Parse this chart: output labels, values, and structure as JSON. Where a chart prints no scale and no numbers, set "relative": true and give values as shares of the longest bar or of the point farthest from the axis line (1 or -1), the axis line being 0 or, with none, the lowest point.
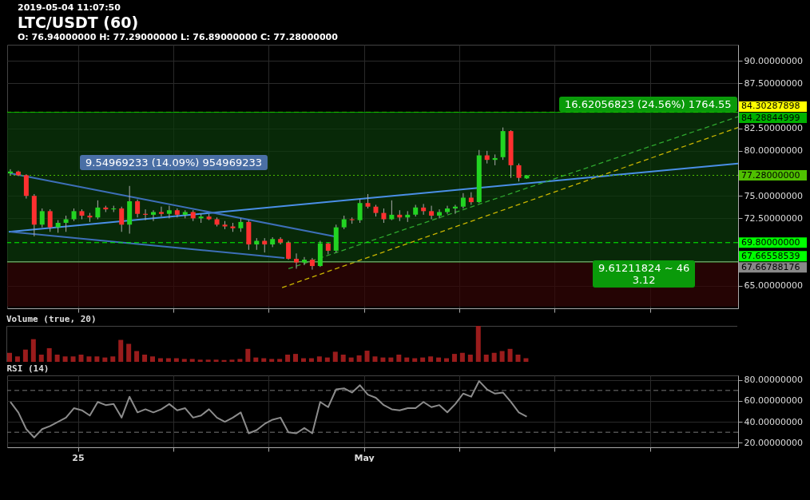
{
  "chart_data": [
    {
      "type": "candlestick",
      "title": "LTC/USDT (60)",
      "subtitle": "O: 76.94000000 H: 77.29000000 L: 76.89000000 C: 77.28000000",
      "annotations": [
        "2019-05-04 11:07:50",
        "9.54969233 (14.09%) 954969233",
        "16.62056823 (24.56%) 1764.55",
        "9.61211824 ~ 46\n3.12"
      ],
      "x": [
        "2019-04-23T14:00",
        "2019-04-23T18:00",
        "2019-04-23T22:00",
        "2019-04-24T02:00",
        "2019-04-24T06:00",
        "2019-04-24T10:00",
        "2019-04-24T14:00",
        "2019-04-24T18:00",
        "2019-04-24T22:00",
        "2019-04-25T02:00",
        "2019-04-25T06:00",
        "2019-04-25T10:00",
        "2019-04-25T14:00",
        "2019-04-25T18:00",
        "2019-04-25T22:00",
        "2019-04-26T02:00",
        "2019-04-26T06:00",
        "2019-04-26T10:00",
        "2019-04-26T14:00",
        "2019-04-26T18:00",
        "2019-04-26T22:00",
        "2019-04-27T02:00",
        "2019-04-27T06:00",
        "2019-04-27T10:00",
        "2019-04-27T14:00",
        "2019-04-27T18:00",
        "2019-04-27T22:00",
        "2019-04-28T02:00",
        "2019-04-28T06:00",
        "2019-04-28T10:00",
        "2019-04-28T14:00",
        "2019-04-28T18:00",
        "2019-04-28T22:00",
        "2019-04-29T02:00",
        "2019-04-29T06:00",
        "2019-04-29T10:00",
        "2019-04-29T14:00",
        "2019-04-29T18:00",
        "2019-04-29T22:00",
        "2019-04-30T02:00",
        "2019-04-30T06:00",
        "2019-04-30T10:00",
        "2019-04-30T14:00",
        "2019-04-30T18:00",
        "2019-04-30T22:00",
        "2019-05-01T02:00",
        "2019-05-01T06:00",
        "2019-05-01T10:00",
        "2019-05-01T14:00",
        "2019-05-01T18:00",
        "2019-05-01T22:00",
        "2019-05-02T02:00",
        "2019-05-02T06:00",
        "2019-05-02T10:00",
        "2019-05-02T14:00",
        "2019-05-02T18:00",
        "2019-05-02T22:00",
        "2019-05-03T02:00",
        "2019-05-03T06:00",
        "2019-05-03T10:00",
        "2019-05-03T14:00",
        "2019-05-03T18:00",
        "2019-05-03T22:00",
        "2019-05-04T02:00",
        "2019-05-04T06:00",
        "2019-05-04T10:00"
      ],
      "ohlc": [
        [
          77.5,
          77.96,
          77.3,
          77.7
        ],
        [
          77.7,
          77.8,
          77.2,
          77.3
        ],
        [
          77.3,
          77.4,
          74.7,
          75.0
        ],
        [
          75.0,
          75.2,
          70.5,
          71.8
        ],
        [
          71.8,
          73.6,
          71.5,
          73.3
        ],
        [
          73.3,
          73.5,
          71.0,
          71.5
        ],
        [
          71.5,
          72.3,
          70.9,
          72.0
        ],
        [
          72.0,
          72.8,
          71.0,
          72.4
        ],
        [
          72.4,
          73.6,
          72.2,
          73.3
        ],
        [
          73.3,
          73.5,
          72.4,
          72.8
        ],
        [
          72.8,
          73.1,
          72.1,
          72.6
        ],
        [
          72.6,
          74.5,
          72.4,
          73.7
        ],
        [
          73.7,
          73.9,
          73.2,
          73.5
        ],
        [
          73.5,
          73.9,
          73.2,
          73.6
        ],
        [
          73.6,
          73.8,
          71.0,
          71.8
        ],
        [
          71.8,
          76.1,
          70.8,
          74.4
        ],
        [
          74.4,
          74.6,
          72.6,
          73.0
        ],
        [
          73.0,
          73.5,
          72.3,
          72.9
        ],
        [
          72.9,
          73.4,
          72.2,
          73.2
        ],
        [
          73.2,
          73.8,
          72.7,
          73.0
        ],
        [
          73.0,
          73.9,
          72.5,
          73.4
        ],
        [
          73.4,
          73.6,
          72.6,
          72.9
        ],
        [
          72.9,
          73.4,
          72.5,
          73.2
        ],
        [
          73.2,
          73.4,
          72.2,
          72.5
        ],
        [
          72.5,
          73.0,
          72.0,
          72.7
        ],
        [
          72.7,
          73.0,
          72.3,
          72.4
        ],
        [
          72.4,
          72.6,
          71.6,
          71.8
        ],
        [
          71.8,
          72.2,
          71.3,
          71.6
        ],
        [
          71.6,
          72.0,
          71.0,
          71.4
        ],
        [
          71.4,
          72.5,
          71.0,
          72.1
        ],
        [
          72.1,
          72.3,
          69.0,
          69.6
        ],
        [
          69.6,
          70.3,
          69.0,
          70.0
        ],
        [
          70.0,
          70.3,
          68.7,
          69.6
        ],
        [
          69.6,
          70.4,
          69.3,
          70.2
        ],
        [
          70.2,
          70.4,
          69.6,
          69.8
        ],
        [
          69.8,
          70.0,
          67.9,
          68.0
        ],
        [
          68.0,
          68.6,
          66.9,
          67.6
        ],
        [
          67.6,
          68.2,
          67.3,
          67.9
        ],
        [
          67.9,
          68.1,
          66.8,
          67.2
        ],
        [
          67.2,
          70.0,
          67.1,
          69.7
        ],
        [
          69.7,
          69.8,
          68.5,
          68.9
        ],
        [
          68.9,
          71.8,
          68.7,
          71.5
        ],
        [
          71.5,
          72.8,
          71.3,
          72.4
        ],
        [
          72.4,
          72.6,
          71.9,
          72.3
        ],
        [
          72.3,
          74.6,
          72.0,
          74.2
        ],
        [
          74.2,
          75.2,
          73.6,
          73.8
        ],
        [
          73.8,
          74.0,
          72.7,
          73.1
        ],
        [
          73.1,
          73.6,
          72.0,
          72.4
        ],
        [
          72.4,
          74.5,
          72.3,
          72.9
        ],
        [
          72.9,
          73.4,
          72.2,
          72.6
        ],
        [
          72.6,
          73.3,
          72.1,
          72.9
        ],
        [
          72.9,
          74.0,
          72.7,
          73.7
        ],
        [
          73.7,
          74.1,
          72.9,
          73.3
        ],
        [
          73.3,
          73.9,
          72.4,
          72.8
        ],
        [
          72.8,
          73.5,
          72.5,
          73.2
        ],
        [
          73.2,
          73.9,
          73.0,
          73.6
        ],
        [
          73.6,
          74.0,
          73.0,
          73.8
        ],
        [
          73.8,
          75.3,
          73.6,
          74.8
        ],
        [
          74.8,
          75.4,
          74.0,
          74.3
        ],
        [
          74.3,
          80.1,
          74.2,
          79.5
        ],
        [
          79.5,
          80.0,
          78.6,
          79.0
        ],
        [
          79.0,
          79.6,
          78.4,
          79.2
        ],
        [
          79.3,
          82.6,
          79.0,
          82.2
        ],
        [
          82.2,
          82.3,
          77.0,
          78.4
        ],
        [
          78.4,
          78.6,
          76.6,
          77.0
        ],
        [
          76.94,
          77.29,
          76.89,
          77.28
        ]
      ],
      "series": [
        {
          "type": "line",
          "color": "#4a8fe7",
          "line_style": "solid",
          "x": [
            "2019-04-23T13:12",
            "2019-05-08T20:24"
          ],
          "values": [
            71.0,
            78.6
          ]
        },
        {
          "type": "line",
          "color": "#3d6fb8",
          "line_style": "solid",
          "x": [
            "2019-04-23T14:00",
            "2019-04-30T09:12"
          ],
          "values": [
            77.5,
            70.5
          ]
        },
        {
          "type": "line",
          "color": "#3d6fb8",
          "line_style": "solid",
          "x": [
            "2019-04-23T14:00",
            "2019-04-29T08:00"
          ],
          "values": [
            71.0,
            68.1
          ]
        },
        {
          "type": "line",
          "color": "#2fa82f",
          "line_style": "dashed",
          "x": [
            "2019-04-29T10:00",
            "2019-05-08T20:24"
          ],
          "values": [
            66.9,
            83.8
          ]
        },
        {
          "type": "line",
          "color": "#c8b400",
          "line_style": "dashed",
          "x": [
            "2019-04-29T06:48",
            "2019-05-08T20:24"
          ],
          "values": [
            64.8,
            82.6
          ]
        }
      ],
      "bands": [
        {
          "axis": "y",
          "from": 67.67,
          "to": 84.29,
          "color": "#0b3a0b"
        },
        {
          "axis": "y",
          "from": 62.7,
          "to": 67.67,
          "color": "#350606"
        }
      ],
      "ref_lines": [
        {
          "axis": "y",
          "value": 84.30287898,
          "label": "84.30287898",
          "color": "#ffff00",
          "line_style": "dashed"
        },
        {
          "axis": "y",
          "value": 84.28844999,
          "label": "84.28844999",
          "color": "#00b000",
          "line_style": "solid"
        },
        {
          "axis": "y",
          "value": 77.28,
          "label": "77.28000000",
          "color": "#4fc000",
          "line_style": "dotted"
        },
        {
          "axis": "y",
          "value": 69.8,
          "label": "69.80000000",
          "color": "#00ff00",
          "line_style": "dashed"
        },
        {
          "axis": "y",
          "value": 67.66558539,
          "label": "67.66558539",
          "color": "#00ff00",
          "line_style": "solid"
        },
        {
          "axis": "y",
          "value": 67.66788176,
          "label": "67.66788176",
          "color": "#888888",
          "line_style": "solid"
        }
      ],
      "xlim": [
        "2019-04-23T12:24",
        "2019-05-08T20:24"
      ],
      "xticks": [
        {
          "value": "2019-04-25",
          "label": null
        },
        {
          "value": "2019-04-27",
          "label": null
        },
        {
          "value": "2019-04-29",
          "label": null
        },
        {
          "value": "2019-05-01",
          "label": null
        },
        {
          "value": "2019-05-03",
          "label": null
        },
        {
          "value": "2019-05-05",
          "label": null
        },
        {
          "value": "2019-05-07",
          "label": null
        }
      ],
      "ylim": [
        62.5,
        91.8
      ],
      "yticks": [
        {
          "value": 65,
          "label": "65.00000000"
        },
        {
          "value": 72.5,
          "label": "72.50000000"
        },
        {
          "value": 75,
          "label": "75.00000000"
        },
        {
          "value": 80,
          "label": "80.00000000"
        },
        {
          "value": 82.5,
          "label": "82.50000000"
        },
        {
          "value": 87.5,
          "label": "87.50000000"
        },
        {
          "value": 90,
          "label": "90.00000000"
        }
      ],
      "grid": true,
      "tick_labels": "y"
    },
    {
      "type": "bar",
      "title": "Volume (true, 20)",
      "relative": true,
      "color": "#9a1c1c",
      "x": [
        "2019-04-23T14:00",
        "2019-04-23T18:00",
        "2019-04-23T22:00",
        "2019-04-24T02:00",
        "2019-04-24T06:00",
        "2019-04-24T10:00",
        "2019-04-24T14:00",
        "2019-04-24T18:00",
        "2019-04-24T22:00",
        "2019-04-25T02:00",
        "2019-04-25T06:00",
        "2019-04-25T10:00",
        "2019-04-25T14:00",
        "2019-04-25T18:00",
        "2019-04-25T22:00",
        "2019-04-26T02:00",
        "2019-04-26T06:00",
        "2019-04-26T10:00",
        "2019-04-26T14:00",
        "2019-04-26T18:00",
        "2019-04-26T22:00",
        "2019-04-27T02:00",
        "2019-04-27T06:00",
        "2019-04-27T10:00",
        "2019-04-27T14:00",
        "2019-04-27T18:00",
        "2019-04-27T22:00",
        "2019-04-28T02:00",
        "2019-04-28T06:00",
        "2019-04-28T10:00",
        "2019-04-28T14:00",
        "2019-04-28T18:00",
        "2019-04-28T22:00",
        "2019-04-29T02:00",
        "2019-04-29T06:00",
        "2019-04-29T10:00",
        "2019-04-29T14:00",
        "2019-04-29T18:00",
        "2019-04-29T22:00",
        "2019-04-30T02:00",
        "2019-04-30T06:00",
        "2019-04-30T10:00",
        "2019-04-30T14:00",
        "2019-04-30T18:00",
        "2019-04-30T22:00",
        "2019-05-01T02:00",
        "2019-05-01T06:00",
        "2019-05-01T10:00",
        "2019-05-01T14:00",
        "2019-05-01T18:00",
        "2019-05-01T22:00",
        "2019-05-02T02:00",
        "2019-05-02T06:00",
        "2019-05-02T10:00",
        "2019-05-02T14:00",
        "2019-05-02T18:00",
        "2019-05-02T22:00",
        "2019-05-03T02:00",
        "2019-05-03T06:00",
        "2019-05-03T10:00",
        "2019-05-03T14:00",
        "2019-05-03T18:00",
        "2019-05-03T22:00",
        "2019-05-04T02:00",
        "2019-05-04T06:00",
        "2019-05-04T10:00"
      ],
      "values": [
        0.25,
        0.15,
        0.34,
        0.63,
        0.2,
        0.38,
        0.2,
        0.15,
        0.15,
        0.2,
        0.15,
        0.15,
        0.12,
        0.15,
        0.61,
        0.5,
        0.3,
        0.2,
        0.15,
        0.1,
        0.1,
        0.1,
        0.08,
        0.08,
        0.06,
        0.06,
        0.06,
        0.05,
        0.06,
        0.08,
        0.36,
        0.12,
        0.1,
        0.08,
        0.08,
        0.2,
        0.22,
        0.1,
        0.1,
        0.15,
        0.12,
        0.28,
        0.2,
        0.12,
        0.18,
        0.31,
        0.15,
        0.12,
        0.12,
        0.2,
        0.12,
        0.1,
        0.12,
        0.15,
        0.12,
        0.1,
        0.22,
        0.25,
        0.2,
        1,
        0.2,
        0.25,
        0.3,
        0.36,
        0.2,
        0.1
      ],
      "xlim": [
        "2019-04-23T12:24",
        "2019-05-08T20:24"
      ],
      "tick_labels": false
    },
    {
      "type": "line",
      "title": "RSI (14)",
      "color": "#8c8c8c",
      "x": [
        "2019-04-23T14:00",
        "2019-04-23T18:00",
        "2019-04-23T22:00",
        "2019-04-24T02:00",
        "2019-04-24T06:00",
        "2019-04-24T10:00",
        "2019-04-24T14:00",
        "2019-04-24T18:00",
        "2019-04-24T22:00",
        "2019-04-25T02:00",
        "2019-04-25T06:00",
        "2019-04-25T10:00",
        "2019-04-25T14:00",
        "2019-04-25T18:00",
        "2019-04-25T22:00",
        "2019-04-26T02:00",
        "2019-04-26T06:00",
        "2019-04-26T10:00",
        "2019-04-26T14:00",
        "2019-04-26T18:00",
        "2019-04-26T22:00",
        "2019-04-27T02:00",
        "2019-04-27T06:00",
        "2019-04-27T10:00",
        "2019-04-27T14:00",
        "2019-04-27T18:00",
        "2019-04-27T22:00",
        "2019-04-28T02:00",
        "2019-04-28T06:00",
        "2019-04-28T10:00",
        "2019-04-28T14:00",
        "2019-04-28T18:00",
        "2019-04-28T22:00",
        "2019-04-29T02:00",
        "2019-04-29T06:00",
        "2019-04-29T10:00",
        "2019-04-29T14:00",
        "2019-04-29T18:00",
        "2019-04-29T22:00",
        "2019-04-30T02:00",
        "2019-04-30T06:00",
        "2019-04-30T10:00",
        "2019-04-30T14:00",
        "2019-04-30T18:00",
        "2019-04-30T22:00",
        "2019-05-01T02:00",
        "2019-05-01T06:00",
        "2019-05-01T10:00",
        "2019-05-01T14:00",
        "2019-05-01T18:00",
        "2019-05-01T22:00",
        "2019-05-02T02:00",
        "2019-05-02T06:00",
        "2019-05-02T10:00",
        "2019-05-02T14:00",
        "2019-05-02T18:00",
        "2019-05-02T22:00",
        "2019-05-03T02:00",
        "2019-05-03T06:00",
        "2019-05-03T10:00",
        "2019-05-03T14:00",
        "2019-05-03T18:00",
        "2019-05-03T22:00",
        "2019-05-04T02:00",
        "2019-05-04T06:00",
        "2019-05-04T10:00"
      ],
      "values": [
        59,
        49,
        33,
        25,
        33,
        36,
        40,
        44,
        53,
        51,
        46,
        59,
        56,
        57,
        44,
        64,
        49,
        52,
        49,
        52,
        57,
        51,
        53,
        44,
        46,
        52,
        44,
        40,
        44,
        49,
        29,
        32,
        38,
        42,
        44,
        30,
        29,
        34,
        29,
        59,
        54,
        71,
        72,
        68,
        75,
        66,
        63,
        56,
        52,
        51,
        53,
        53,
        59,
        54,
        56,
        49,
        57,
        67,
        64,
        79,
        71,
        67,
        68,
        59,
        49,
        45
      ],
      "ref_lines": [
        {
          "axis": "y",
          "value": 70,
          "color": "#777777",
          "line_style": "dashed"
        },
        {
          "axis": "y",
          "value": 30,
          "color": "#777777",
          "line_style": "dashed"
        }
      ],
      "xlim": [
        "2019-04-23T12:24",
        "2019-05-08T20:24"
      ],
      "xticks": [
        {
          "value": "2019-04-25",
          "label": "25"
        },
        {
          "value": "2019-04-27",
          "label": null
        },
        {
          "value": "2019-04-29",
          "label": null
        },
        {
          "value": "2019-05-01",
          "label": "May"
        },
        {
          "value": "2019-05-03",
          "label": null
        },
        {
          "value": "2019-05-05",
          "label": null
        },
        {
          "value": "2019-05-07",
          "label": null
        }
      ],
      "ylim": [
        15.6,
        84.4
      ],
      "yticks": [
        {
          "value": 20,
          "label": "20.00000000"
        },
        {
          "value": 40,
          "label": "40.00000000"
        },
        {
          "value": 60,
          "label": "60.00000000"
        },
        {
          "value": 80,
          "label": "80.00000000"
        }
      ],
      "grid": true
    }
  ]
}
